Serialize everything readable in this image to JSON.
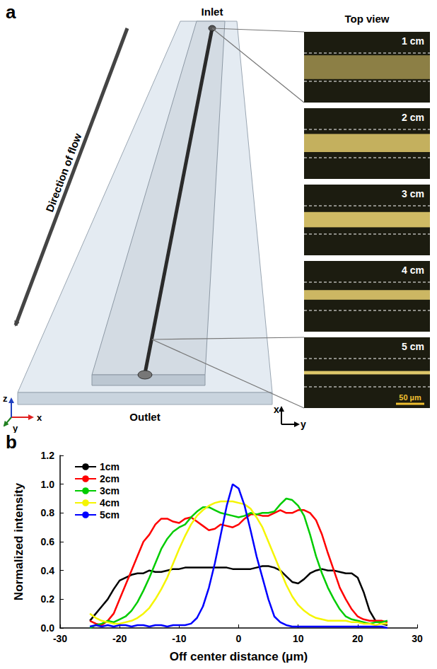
{
  "panel_a": {
    "label": "a",
    "inlet": "Inlet",
    "outlet": "Outlet",
    "flow": "Direction of flow",
    "top_view": "Top view",
    "scale_bar": "50 µm",
    "axes": [
      "x",
      "y",
      "z"
    ],
    "inset_axes": [
      "x",
      "y"
    ],
    "images": [
      "1 cm",
      "2 cm",
      "3 cm",
      "4 cm",
      "5 cm"
    ]
  },
  "chart_data": {
    "type": "line",
    "panel_label": "b",
    "xlabel": "Off center distance (μm)",
    "ylabel": "Normalized intensity",
    "x": [
      -25,
      -24,
      -23,
      -22,
      -21,
      -20,
      -19,
      -18,
      -17,
      -16,
      -15,
      -14,
      -13,
      -12,
      -11,
      -10,
      -9,
      -8,
      -7,
      -6,
      -5,
      -4,
      -3,
      -2,
      -1,
      0,
      1,
      2,
      3,
      4,
      5,
      6,
      7,
      8,
      9,
      10,
      11,
      12,
      13,
      14,
      15,
      16,
      17,
      18,
      19,
      20,
      21,
      22,
      23,
      24,
      25
    ],
    "series": [
      {
        "name": "1cm",
        "color": "#000000",
        "values": [
          0.05,
          0.1,
          0.15,
          0.2,
          0.27,
          0.33,
          0.35,
          0.37,
          0.38,
          0.38,
          0.4,
          0.39,
          0.39,
          0.4,
          0.41,
          0.41,
          0.42,
          0.42,
          0.42,
          0.42,
          0.42,
          0.42,
          0.42,
          0.42,
          0.41,
          0.41,
          0.41,
          0.41,
          0.42,
          0.43,
          0.43,
          0.42,
          0.4,
          0.36,
          0.32,
          0.31,
          0.34,
          0.38,
          0.4,
          0.41,
          0.4,
          0.4,
          0.39,
          0.38,
          0.38,
          0.35,
          0.25,
          0.12,
          0.05,
          0.03,
          0.02
        ]
      },
      {
        "name": "2cm",
        "color": "#ff0000",
        "values": [
          0.05,
          0.03,
          0.02,
          0.05,
          0.1,
          0.2,
          0.3,
          0.4,
          0.5,
          0.6,
          0.65,
          0.72,
          0.76,
          0.76,
          0.74,
          0.73,
          0.76,
          0.77,
          0.74,
          0.71,
          0.68,
          0.69,
          0.72,
          0.71,
          0.7,
          0.72,
          0.76,
          0.79,
          0.79,
          0.78,
          0.78,
          0.8,
          0.82,
          0.8,
          0.8,
          0.82,
          0.82,
          0.8,
          0.75,
          0.65,
          0.52,
          0.4,
          0.28,
          0.2,
          0.13,
          0.08,
          0.06,
          0.05,
          0.05,
          0.05,
          0.04
        ]
      },
      {
        "name": "3cm",
        "color": "#00cc00",
        "values": [
          0.0,
          0.02,
          0.03,
          0.05,
          0.04,
          0.06,
          0.08,
          0.12,
          0.18,
          0.26,
          0.35,
          0.45,
          0.55,
          0.62,
          0.67,
          0.7,
          0.72,
          0.77,
          0.81,
          0.84,
          0.84,
          0.82,
          0.8,
          0.79,
          0.78,
          0.77,
          0.78,
          0.8,
          0.79,
          0.8,
          0.8,
          0.81,
          0.86,
          0.9,
          0.89,
          0.85,
          0.78,
          0.65,
          0.5,
          0.38,
          0.28,
          0.2,
          0.13,
          0.08,
          0.06,
          0.05,
          0.04,
          0.03,
          0.04,
          0.04,
          0.05
        ]
      },
      {
        "name": "4cm",
        "color": "#f5f500",
        "values": [
          0.1,
          0.07,
          0.05,
          0.04,
          0.03,
          0.03,
          0.04,
          0.05,
          0.07,
          0.1,
          0.14,
          0.2,
          0.27,
          0.35,
          0.45,
          0.55,
          0.64,
          0.72,
          0.78,
          0.82,
          0.85,
          0.87,
          0.88,
          0.88,
          0.88,
          0.87,
          0.86,
          0.83,
          0.77,
          0.7,
          0.6,
          0.5,
          0.4,
          0.3,
          0.22,
          0.16,
          0.12,
          0.09,
          0.07,
          0.06,
          0.05,
          0.05,
          0.05,
          0.05,
          0.04,
          0.04,
          0.03,
          0.03,
          0.02,
          0.03,
          0.03
        ]
      },
      {
        "name": "5cm",
        "color": "#0000ff",
        "values": [
          0.01,
          0.02,
          0.01,
          0.02,
          0.01,
          0.02,
          0.02,
          0.01,
          0.02,
          0.02,
          0.01,
          0.02,
          0.02,
          0.01,
          0.02,
          0.02,
          0.02,
          0.03,
          0.07,
          0.15,
          0.28,
          0.45,
          0.65,
          0.85,
          1.0,
          0.97,
          0.85,
          0.68,
          0.5,
          0.35,
          0.2,
          0.08,
          0.04,
          0.02,
          0.01,
          0.01,
          0.01,
          0.01,
          0.01,
          0.01,
          0.01,
          0.01,
          0.01,
          0.01,
          0.01,
          0.01,
          0.01,
          0.01,
          0.01,
          0.01,
          0.0
        ]
      }
    ],
    "xlim": [
      -30,
      30
    ],
    "xticks": [
      -30,
      -20,
      -10,
      0,
      10,
      20,
      30
    ],
    "ylim": [
      0,
      1.2
    ],
    "yticks": [
      {
        "value": 0,
        "label": "0.0"
      },
      0.2,
      0.4,
      0.6,
      0.8,
      {
        "value": 1,
        "label": "1.0"
      },
      1.2
    ],
    "legend": "top-left",
    "grid": false
  }
}
